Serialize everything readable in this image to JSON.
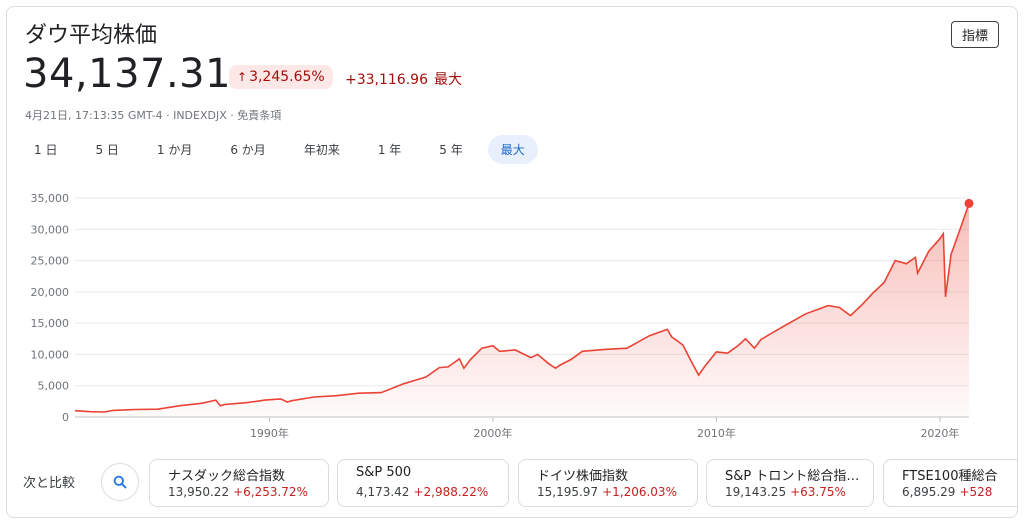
{
  "header": {
    "title": "ダウ平均株価",
    "index_button": "指標",
    "price": "34,137.31",
    "change_pct": "3,245.65%",
    "change_abs": "+33,116.96",
    "change_period": "最大",
    "meta": "4月21日, 17:13:35 GMT-4 · INDEXDJX · 免責条項"
  },
  "colors": {
    "line": "#ea4335",
    "down": "#a50e0e",
    "accent": "#1967d2"
  },
  "icons": {
    "up_arrow": "arrow-up-icon",
    "search": "search-icon"
  },
  "ranges": [
    {
      "label": "1 日",
      "active": false
    },
    {
      "label": "5 日",
      "active": false
    },
    {
      "label": "1 か月",
      "active": false
    },
    {
      "label": "6 か月",
      "active": false
    },
    {
      "label": "年初来",
      "active": false
    },
    {
      "label": "1 年",
      "active": false
    },
    {
      "label": "5 年",
      "active": false
    },
    {
      "label": "最大",
      "active": true
    }
  ],
  "chart_data": {
    "type": "area",
    "ylim": [
      0,
      35000
    ],
    "xlim": [
      1981.3,
      2021.3
    ],
    "yticks": [
      0,
      5000,
      10000,
      15000,
      20000,
      25000,
      30000,
      35000
    ],
    "ytick_labels": [
      "0",
      "5,000",
      "10,000",
      "15,000",
      "20,000",
      "25,000",
      "30,000",
      "35,000"
    ],
    "xticks": [
      1990,
      2000,
      2010,
      2020
    ],
    "xtick_labels": [
      "1990年",
      "2000年",
      "2010年",
      "2020年"
    ],
    "grid": true,
    "series": [
      {
        "x": [
          1981.3,
          1982.0,
          1982.6,
          1983.0,
          1984.0,
          1985.0,
          1986.0,
          1987.0,
          1987.6,
          1987.8,
          1988.0,
          1989.0,
          1989.8,
          1990.5,
          1990.8,
          1991.0,
          1992.0,
          1993.0,
          1994.0,
          1995.0,
          1996.0,
          1997.0,
          1997.6,
          1998.0,
          1998.5,
          1998.7,
          1999.0,
          1999.5,
          2000.0,
          2000.3,
          2001.0,
          2001.7,
          2002.0,
          2002.5,
          2002.8,
          2003.0,
          2003.5,
          2004.0,
          2005.0,
          2006.0,
          2007.0,
          2007.8,
          2008.0,
          2008.5,
          2008.9,
          2009.2,
          2009.5,
          2010.0,
          2010.5,
          2011.0,
          2011.3,
          2011.7,
          2012.0,
          2013.0,
          2014.0,
          2015.0,
          2015.5,
          2016.0,
          2016.5,
          2017.0,
          2017.5,
          2018.0,
          2018.5,
          2018.9,
          2019.0,
          2019.5,
          2020.0,
          2020.15,
          2020.25,
          2020.5,
          2021.0,
          2021.3
        ],
        "y": [
          1000,
          850,
          800,
          1050,
          1200,
          1250,
          1800,
          2200,
          2700,
          1800,
          2000,
          2300,
          2700,
          2900,
          2400,
          2600,
          3200,
          3400,
          3800,
          3900,
          5300,
          6400,
          7900,
          8000,
          9300,
          7800,
          9200,
          11000,
          11400,
          10500,
          10700,
          9500,
          10000,
          8500,
          7800,
          8300,
          9200,
          10500,
          10800,
          11000,
          13000,
          14000,
          12800,
          11500,
          8700,
          6700,
          8200,
          10400,
          10200,
          11500,
          12500,
          11000,
          12400,
          14500,
          16500,
          17800,
          17500,
          16200,
          17900,
          19800,
          21500,
          25000,
          24500,
          25500,
          23000,
          26500,
          28500,
          29300,
          19200,
          26000,
          31000,
          34137.31
        ]
      }
    ]
  },
  "compare": {
    "label": "次と比較",
    "items": [
      {
        "name": "ナスダック総合指数",
        "value": "13,950.22",
        "pct": "+6,253.72%"
      },
      {
        "name": "S&P 500",
        "value": "4,173.42",
        "pct": "+2,988.22%"
      },
      {
        "name": "ドイツ株価指数",
        "value": "15,195.97",
        "pct": "+1,206.03%"
      },
      {
        "name": "S&P トロント総合指…",
        "value": "19,143.25",
        "pct": "+63.75%"
      },
      {
        "name": "FTSE100種総合",
        "value": "6,895.29",
        "pct": "+528"
      }
    ]
  }
}
